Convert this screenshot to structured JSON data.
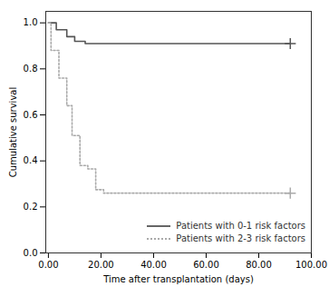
{
  "chart_data": {
    "type": "step",
    "xlabel": "Time after transplantation (days)",
    "ylabel": "Cumulative survival",
    "series": [
      {
        "name": "Patients with 0-1 risk factors",
        "color": "#555555",
        "line_style": "solid",
        "marker": "plus",
        "x": [
          0,
          3,
          3,
          7,
          7,
          10,
          10,
          14,
          14,
          92
        ],
        "values": [
          1.0,
          1.0,
          0.97,
          0.97,
          0.94,
          0.94,
          0.92,
          0.92,
          0.91,
          0.91
        ],
        "censor_x": [
          92
        ],
        "censor_y": [
          0.91
        ]
      },
      {
        "name": "Patients with 2-3 risk factors",
        "color": "#aaaaaa",
        "line_style": "dotted",
        "marker": "plus",
        "x": [
          0,
          0,
          1,
          1,
          4,
          4,
          7,
          7,
          9,
          9,
          12,
          12,
          15,
          15,
          18,
          18,
          21,
          21,
          24,
          24,
          27,
          27,
          92
        ],
        "values": [
          1.0,
          1.0,
          1.0,
          0.88,
          0.88,
          0.76,
          0.76,
          0.64,
          0.64,
          0.51,
          0.51,
          0.38,
          0.38,
          0.365,
          0.365,
          0.275,
          0.275,
          0.26,
          0.26,
          0.26,
          0.26,
          0.26,
          0.26
        ],
        "censor_x": [
          92
        ],
        "censor_y": [
          0.26
        ]
      }
    ],
    "xlim": [
      -1,
      100
    ],
    "ylim": [
      0.0,
      1.05
    ],
    "xticks": [
      {
        "value": 0,
        "label": "0.00"
      },
      {
        "value": 20,
        "label": "20.00"
      },
      {
        "value": 40,
        "label": "40.00"
      },
      {
        "value": 60,
        "label": "60.00"
      },
      {
        "value": 80,
        "label": "80.00"
      },
      {
        "value": 100,
        "label": "100.00"
      }
    ],
    "yticks": [
      {
        "value": 0,
        "label": "0.0"
      },
      0.2,
      0.4,
      0.6,
      0.8,
      {
        "value": 1,
        "label": "1.0"
      }
    ],
    "grid": false,
    "legend": "lower right"
  }
}
